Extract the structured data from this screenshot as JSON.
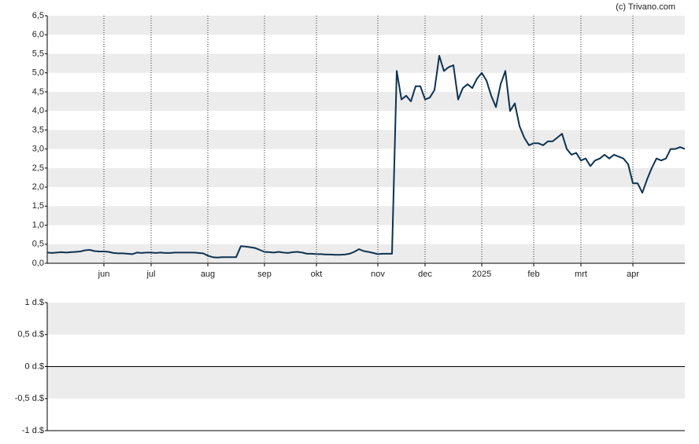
{
  "credit": "(c) Trivano.com",
  "chart_data": [
    {
      "type": "line",
      "categories": [
        null,
        null,
        null,
        null,
        null,
        null,
        null,
        null,
        null,
        null,
        null,
        null,
        "jun",
        null,
        null,
        null,
        null,
        null,
        null,
        null,
        null,
        null,
        "jul",
        null,
        null,
        null,
        null,
        null,
        null,
        null,
        null,
        null,
        null,
        null,
        "aug",
        null,
        null,
        null,
        null,
        null,
        null,
        null,
        null,
        null,
        null,
        null,
        "sep",
        null,
        null,
        null,
        null,
        null,
        null,
        null,
        null,
        null,
        null,
        "okt",
        null,
        null,
        null,
        null,
        null,
        null,
        null,
        null,
        null,
        null,
        null,
        null,
        "nov",
        null,
        null,
        null,
        null,
        null,
        null,
        null,
        null,
        null,
        "dec",
        null,
        null,
        null,
        null,
        null,
        null,
        null,
        null,
        null,
        null,
        null,
        "2025",
        null,
        null,
        null,
        null,
        null,
        null,
        null,
        null,
        null,
        null,
        "feb",
        null,
        null,
        null,
        null,
        null,
        null,
        null,
        null,
        null,
        "mrt",
        null,
        null,
        null,
        null,
        null,
        null,
        null,
        null,
        null,
        null,
        "apr",
        null,
        null,
        null,
        null,
        null,
        null,
        null,
        null,
        null,
        null,
        null
      ],
      "series": [
        {
          "color": "#0d3352",
          "values": [
            0.28,
            0.27,
            0.28,
            0.29,
            0.28,
            0.29,
            0.3,
            0.31,
            0.34,
            0.35,
            0.32,
            0.31,
            0.31,
            0.3,
            0.27,
            0.26,
            0.26,
            0.25,
            0.24,
            0.28,
            0.27,
            0.28,
            0.28,
            0.27,
            0.28,
            0.27,
            0.27,
            0.28,
            0.28,
            0.28,
            0.28,
            0.28,
            0.27,
            0.26,
            0.2,
            0.16,
            0.15,
            0.16,
            0.16,
            0.16,
            0.16,
            0.45,
            0.44,
            0.42,
            0.4,
            0.35,
            0.3,
            0.29,
            0.28,
            0.3,
            0.28,
            0.27,
            0.29,
            0.3,
            0.28,
            0.25,
            0.25,
            0.24,
            0.24,
            0.23,
            0.23,
            0.22,
            0.22,
            0.23,
            0.25,
            0.3,
            0.37,
            0.32,
            0.3,
            0.27,
            0.24,
            0.25,
            0.25,
            0.25,
            5.05,
            4.3,
            4.4,
            4.25,
            4.65,
            4.65,
            4.3,
            4.35,
            4.55,
            5.45,
            5.05,
            5.15,
            5.2,
            4.3,
            4.6,
            4.7,
            4.6,
            4.85,
            5.0,
            4.8,
            4.4,
            4.1,
            4.7,
            5.05,
            4.0,
            4.2,
            3.6,
            3.3,
            3.1,
            3.15,
            3.15,
            3.1,
            3.2,
            3.2,
            3.3,
            3.4,
            3.0,
            2.85,
            2.9,
            2.7,
            2.75,
            2.55,
            2.7,
            2.75,
            2.85,
            2.75,
            2.85,
            2.8,
            2.75,
            2.6,
            2.1,
            2.1,
            1.85,
            2.2,
            2.5,
            2.75,
            2.7,
            2.75,
            3.0,
            3.0,
            3.05,
            3.0
          ]
        }
      ],
      "ylim": [
        0,
        6.5
      ],
      "yticks": [
        {
          "value": 0,
          "label": "0,0"
        },
        {
          "value": 0.5,
          "label": "0,5"
        },
        {
          "value": 1,
          "label": "1,0"
        },
        {
          "value": 1.5,
          "label": "1,5"
        },
        {
          "value": 2,
          "label": "2,0"
        },
        {
          "value": 2.5,
          "label": "2,5"
        },
        {
          "value": 3,
          "label": "3,0"
        },
        {
          "value": 3.5,
          "label": "3,5"
        },
        {
          "value": 4,
          "label": "4,0"
        },
        {
          "value": 4.5,
          "label": "4,5"
        },
        {
          "value": 5,
          "label": "5,0"
        },
        {
          "value": 5.5,
          "label": "5,5"
        },
        {
          "value": 6,
          "label": "6,0"
        },
        {
          "value": 6.5,
          "label": "6,5"
        }
      ],
      "grid": true
    },
    {
      "type": "bar",
      "ylim": [
        -1,
        1
      ],
      "yticks": [
        {
          "value": -1,
          "label": "-1 d.$"
        },
        {
          "value": -0.5,
          "label": "-0,5 d.$"
        },
        {
          "value": 0,
          "label": "0 d.$"
        },
        {
          "value": 0.5,
          "label": "0,5 d.$"
        },
        {
          "value": 1,
          "label": "1 d.$"
        }
      ],
      "grid": true
    }
  ]
}
